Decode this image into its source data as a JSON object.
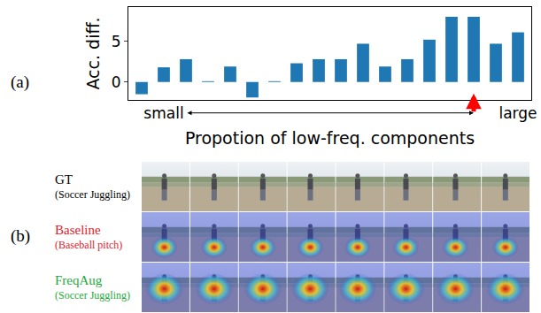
{
  "chart_data": {
    "type": "bar",
    "categories": [
      null,
      "small",
      null,
      null,
      null,
      null,
      null,
      null,
      null,
      null,
      null,
      null,
      null,
      null,
      null,
      null,
      null,
      "large"
    ],
    "values": [
      -1.5,
      1.8,
      2.8,
      0.1,
      1.9,
      -1.9,
      0.1,
      2.3,
      2.8,
      2.8,
      4.7,
      1.9,
      2.8,
      5.2,
      8.0,
      8.0,
      4.7,
      6.1
    ],
    "color": "#1f77b4",
    "xlabel": "Propotion of low-freq. components",
    "ylabel": "Acc. diff.",
    "ylim": [
      -2.2,
      9.2
    ],
    "yticks": [
      0,
      5
    ],
    "grid": false,
    "highlight": {
      "index": 15,
      "color": "#ff0000"
    },
    "span": [
      2,
      15
    ]
  },
  "panels": {
    "a": "(a)",
    "b": "(b)"
  },
  "frames": 8,
  "rows": [
    {
      "label": "GT",
      "class": "(Soccer Juggling)",
      "color": "#000000",
      "heatmap": false
    },
    {
      "label": "Baseline",
      "class": "(Baseball pitch)",
      "color": "#e3202a",
      "heatmap": true
    },
    {
      "label": "FreqAug",
      "class": "(Soccer Juggling)",
      "color": "#1fa83c",
      "heatmap": true
    }
  ]
}
